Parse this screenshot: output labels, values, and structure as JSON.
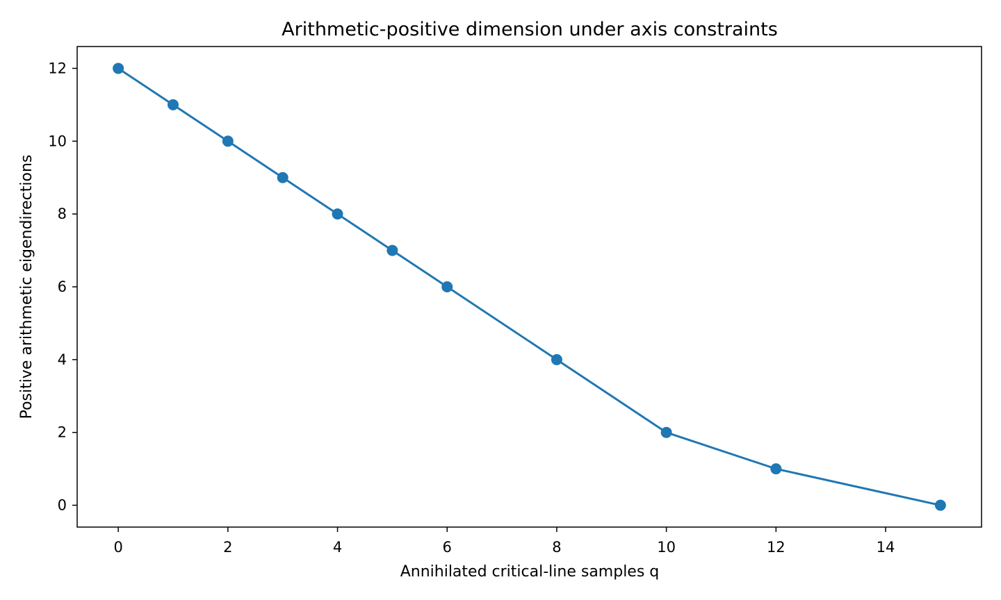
{
  "chart_data": {
    "type": "line",
    "title": "Arithmetic-positive dimension under axis constraints",
    "xlabel": "Annihilated critical-line samples q",
    "ylabel": "Positive arithmetic eigendirections",
    "xlim": [
      -0.75,
      15.75
    ],
    "ylim": [
      -0.6,
      12.6
    ],
    "xticks": [
      0,
      2,
      4,
      6,
      8,
      10,
      12,
      14
    ],
    "yticks": [
      0,
      2,
      4,
      6,
      8,
      10,
      12
    ],
    "grid": false,
    "legend": "none",
    "series": [
      {
        "color": "#1f77b4",
        "marker": "circle",
        "x": [
          0,
          1,
          2,
          3,
          4,
          5,
          6,
          8,
          10,
          12,
          15
        ],
        "y": [
          12,
          11,
          10,
          9,
          8,
          7,
          6,
          4,
          2,
          1,
          0
        ]
      }
    ]
  }
}
